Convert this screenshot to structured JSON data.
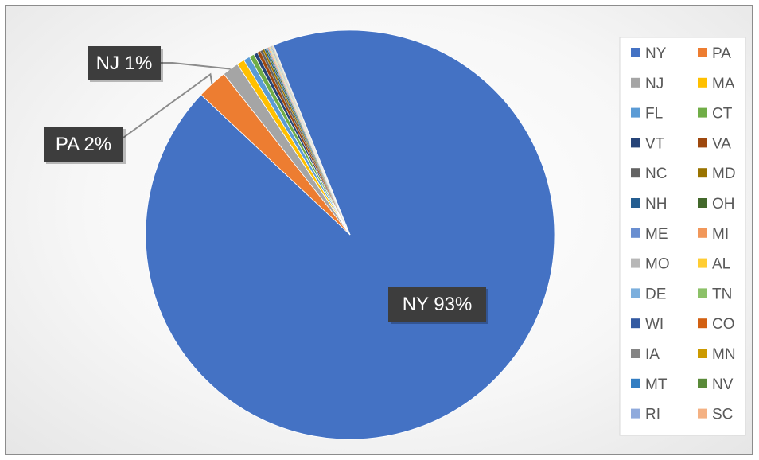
{
  "chart_data": {
    "type": "pie",
    "title": "",
    "categories": [
      "NY",
      "PA",
      "NJ",
      "MA",
      "FL",
      "CT",
      "VT",
      "VA",
      "NC",
      "MD",
      "NH",
      "OH",
      "ME",
      "MI",
      "MO",
      "AL",
      "DE",
      "TN",
      "WI",
      "CO",
      "IA",
      "MN",
      "MT",
      "NV",
      "RI",
      "SC"
    ],
    "values": [
      93.0,
      2.4,
      1.3,
      0.6,
      0.5,
      0.4,
      0.3,
      0.25,
      0.2,
      0.15,
      0.12,
      0.1,
      0.08,
      0.07,
      0.06,
      0.05,
      0.05,
      0.04,
      0.04,
      0.03,
      0.03,
      0.03,
      0.02,
      0.02,
      0.02,
      0.02
    ],
    "colors": [
      "#4472C4",
      "#ED7D31",
      "#A5A5A5",
      "#FFC000",
      "#5B9BD5",
      "#70AD47",
      "#264478",
      "#9E480E",
      "#636363",
      "#997300",
      "#255E91",
      "#43682B",
      "#698ED0",
      "#F1975A",
      "#B7B7B7",
      "#FFCD33",
      "#7CAFDD",
      "#8CC168",
      "#335AA1",
      "#D26012",
      "#848484",
      "#CC9A00",
      "#327DC2",
      "#5A8A39",
      "#8FAADC",
      "#F4B183"
    ],
    "data_labels": [
      {
        "category": "NY",
        "text": "NY 93%"
      },
      {
        "category": "PA",
        "text": "PA 2%"
      },
      {
        "category": "NJ",
        "text": "NJ 1%"
      }
    ],
    "legend_position": "right",
    "legend_columns": 2,
    "start_angle_deg": 338,
    "direction": "clockwise"
  }
}
